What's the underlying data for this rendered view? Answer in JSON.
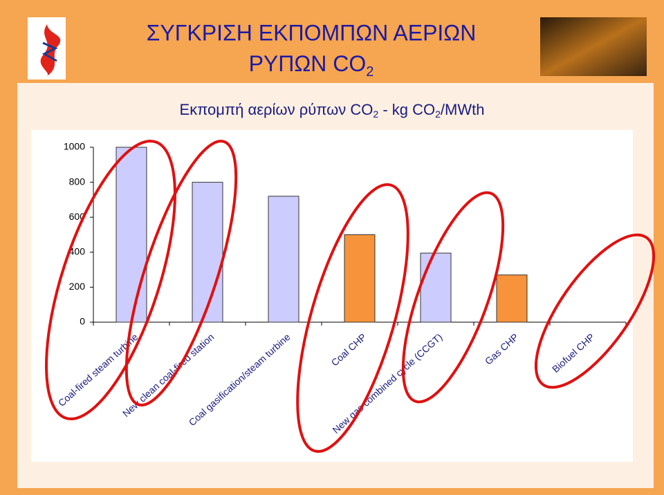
{
  "chart_data": {
    "type": "bar",
    "title_lines": [
      "ΣΥΓΚΡΙΣΗ ΕΚΠΟΜΠΩΝ ΑΕΡΙΩΝ",
      "ΡΥΠΩΝ CO",
      "2"
    ],
    "subtitle_parts": [
      "Εκπομπή αερίων ρύπων CO",
      "2",
      " - kg CO",
      "2",
      "/MWth"
    ],
    "categories": [
      "Coal-fired steam  turbine",
      "New clean coal-fired station",
      "Coal gasification/steam turbine",
      "Coal CHP",
      "New gas combined cycle (CCGT)",
      "Gas CHP",
      "Biofuel CHP"
    ],
    "values": [
      1000,
      800,
      720,
      500,
      395,
      270,
      0
    ],
    "colors": [
      "#ccccff",
      "#ccccff",
      "#ccccff",
      "#f7933a",
      "#ccccff",
      "#f7933a",
      "#f7933a"
    ],
    "ylim": [
      0,
      1000
    ],
    "yticks": [
      0,
      200,
      400,
      600,
      800,
      1000
    ],
    "grid": false
  }
}
